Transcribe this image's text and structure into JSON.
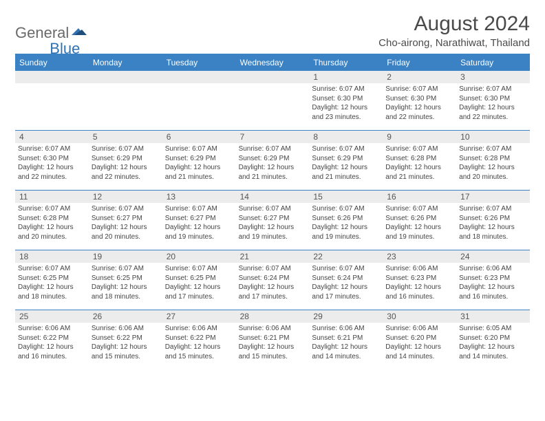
{
  "logo": {
    "part1": "General",
    "part2": "Blue"
  },
  "title": "August 2024",
  "subtitle": "Cho-airong, Narathiwat, Thailand",
  "colors": {
    "header_bar": "#3b82c4",
    "daynum_bg": "#ececec",
    "text": "#444444",
    "title_color": "#4a4a4a"
  },
  "weekdays": [
    "Sunday",
    "Monday",
    "Tuesday",
    "Wednesday",
    "Thursday",
    "Friday",
    "Saturday"
  ],
  "weeks": [
    [
      null,
      null,
      null,
      null,
      {
        "n": "1",
        "sr": "Sunrise: 6:07 AM",
        "ss": "Sunset: 6:30 PM",
        "d1": "Daylight: 12 hours",
        "d2": "and 23 minutes."
      },
      {
        "n": "2",
        "sr": "Sunrise: 6:07 AM",
        "ss": "Sunset: 6:30 PM",
        "d1": "Daylight: 12 hours",
        "d2": "and 22 minutes."
      },
      {
        "n": "3",
        "sr": "Sunrise: 6:07 AM",
        "ss": "Sunset: 6:30 PM",
        "d1": "Daylight: 12 hours",
        "d2": "and 22 minutes."
      }
    ],
    [
      {
        "n": "4",
        "sr": "Sunrise: 6:07 AM",
        "ss": "Sunset: 6:30 PM",
        "d1": "Daylight: 12 hours",
        "d2": "and 22 minutes."
      },
      {
        "n": "5",
        "sr": "Sunrise: 6:07 AM",
        "ss": "Sunset: 6:29 PM",
        "d1": "Daylight: 12 hours",
        "d2": "and 22 minutes."
      },
      {
        "n": "6",
        "sr": "Sunrise: 6:07 AM",
        "ss": "Sunset: 6:29 PM",
        "d1": "Daylight: 12 hours",
        "d2": "and 21 minutes."
      },
      {
        "n": "7",
        "sr": "Sunrise: 6:07 AM",
        "ss": "Sunset: 6:29 PM",
        "d1": "Daylight: 12 hours",
        "d2": "and 21 minutes."
      },
      {
        "n": "8",
        "sr": "Sunrise: 6:07 AM",
        "ss": "Sunset: 6:29 PM",
        "d1": "Daylight: 12 hours",
        "d2": "and 21 minutes."
      },
      {
        "n": "9",
        "sr": "Sunrise: 6:07 AM",
        "ss": "Sunset: 6:28 PM",
        "d1": "Daylight: 12 hours",
        "d2": "and 21 minutes."
      },
      {
        "n": "10",
        "sr": "Sunrise: 6:07 AM",
        "ss": "Sunset: 6:28 PM",
        "d1": "Daylight: 12 hours",
        "d2": "and 20 minutes."
      }
    ],
    [
      {
        "n": "11",
        "sr": "Sunrise: 6:07 AM",
        "ss": "Sunset: 6:28 PM",
        "d1": "Daylight: 12 hours",
        "d2": "and 20 minutes."
      },
      {
        "n": "12",
        "sr": "Sunrise: 6:07 AM",
        "ss": "Sunset: 6:27 PM",
        "d1": "Daylight: 12 hours",
        "d2": "and 20 minutes."
      },
      {
        "n": "13",
        "sr": "Sunrise: 6:07 AM",
        "ss": "Sunset: 6:27 PM",
        "d1": "Daylight: 12 hours",
        "d2": "and 19 minutes."
      },
      {
        "n": "14",
        "sr": "Sunrise: 6:07 AM",
        "ss": "Sunset: 6:27 PM",
        "d1": "Daylight: 12 hours",
        "d2": "and 19 minutes."
      },
      {
        "n": "15",
        "sr": "Sunrise: 6:07 AM",
        "ss": "Sunset: 6:26 PM",
        "d1": "Daylight: 12 hours",
        "d2": "and 19 minutes."
      },
      {
        "n": "16",
        "sr": "Sunrise: 6:07 AM",
        "ss": "Sunset: 6:26 PM",
        "d1": "Daylight: 12 hours",
        "d2": "and 19 minutes."
      },
      {
        "n": "17",
        "sr": "Sunrise: 6:07 AM",
        "ss": "Sunset: 6:26 PM",
        "d1": "Daylight: 12 hours",
        "d2": "and 18 minutes."
      }
    ],
    [
      {
        "n": "18",
        "sr": "Sunrise: 6:07 AM",
        "ss": "Sunset: 6:25 PM",
        "d1": "Daylight: 12 hours",
        "d2": "and 18 minutes."
      },
      {
        "n": "19",
        "sr": "Sunrise: 6:07 AM",
        "ss": "Sunset: 6:25 PM",
        "d1": "Daylight: 12 hours",
        "d2": "and 18 minutes."
      },
      {
        "n": "20",
        "sr": "Sunrise: 6:07 AM",
        "ss": "Sunset: 6:25 PM",
        "d1": "Daylight: 12 hours",
        "d2": "and 17 minutes."
      },
      {
        "n": "21",
        "sr": "Sunrise: 6:07 AM",
        "ss": "Sunset: 6:24 PM",
        "d1": "Daylight: 12 hours",
        "d2": "and 17 minutes."
      },
      {
        "n": "22",
        "sr": "Sunrise: 6:07 AM",
        "ss": "Sunset: 6:24 PM",
        "d1": "Daylight: 12 hours",
        "d2": "and 17 minutes."
      },
      {
        "n": "23",
        "sr": "Sunrise: 6:06 AM",
        "ss": "Sunset: 6:23 PM",
        "d1": "Daylight: 12 hours",
        "d2": "and 16 minutes."
      },
      {
        "n": "24",
        "sr": "Sunrise: 6:06 AM",
        "ss": "Sunset: 6:23 PM",
        "d1": "Daylight: 12 hours",
        "d2": "and 16 minutes."
      }
    ],
    [
      {
        "n": "25",
        "sr": "Sunrise: 6:06 AM",
        "ss": "Sunset: 6:22 PM",
        "d1": "Daylight: 12 hours",
        "d2": "and 16 minutes."
      },
      {
        "n": "26",
        "sr": "Sunrise: 6:06 AM",
        "ss": "Sunset: 6:22 PM",
        "d1": "Daylight: 12 hours",
        "d2": "and 15 minutes."
      },
      {
        "n": "27",
        "sr": "Sunrise: 6:06 AM",
        "ss": "Sunset: 6:22 PM",
        "d1": "Daylight: 12 hours",
        "d2": "and 15 minutes."
      },
      {
        "n": "28",
        "sr": "Sunrise: 6:06 AM",
        "ss": "Sunset: 6:21 PM",
        "d1": "Daylight: 12 hours",
        "d2": "and 15 minutes."
      },
      {
        "n": "29",
        "sr": "Sunrise: 6:06 AM",
        "ss": "Sunset: 6:21 PM",
        "d1": "Daylight: 12 hours",
        "d2": "and 14 minutes."
      },
      {
        "n": "30",
        "sr": "Sunrise: 6:06 AM",
        "ss": "Sunset: 6:20 PM",
        "d1": "Daylight: 12 hours",
        "d2": "and 14 minutes."
      },
      {
        "n": "31",
        "sr": "Sunrise: 6:05 AM",
        "ss": "Sunset: 6:20 PM",
        "d1": "Daylight: 12 hours",
        "d2": "and 14 minutes."
      }
    ]
  ]
}
